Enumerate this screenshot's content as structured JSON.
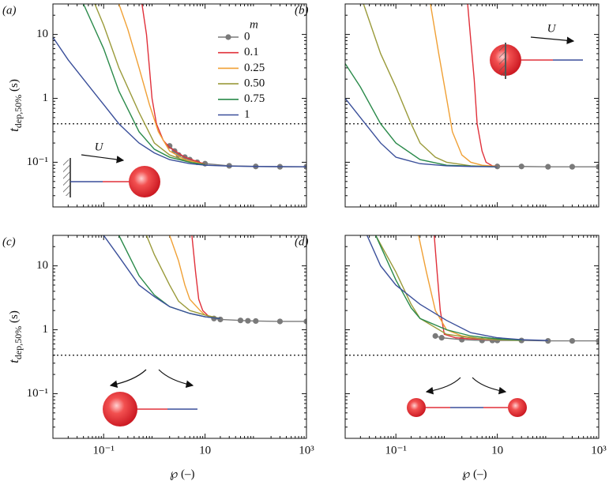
{
  "chart_data": [
    {
      "type": "line",
      "panel_label": "(a)",
      "xscale": "log",
      "yscale": "log",
      "xlim": [
        0.01,
        1000
      ],
      "ylim": [
        0.02,
        30
      ],
      "xticks": [
        0.1,
        10,
        1000
      ],
      "yticks": [
        {
          "value": 0.1,
          "label": "10⁻¹"
        },
        1,
        10
      ],
      "ylabel": {
        "main": "t",
        "sub": "dep,50%",
        "unit": " (s)"
      },
      "hline": 0.4,
      "annotation": "U",
      "legend_title": "m",
      "legend_loc": "upper right",
      "series": [
        {
          "name": "0",
          "color": "#7a7a7a",
          "markers": true,
          "x": [
            2,
            2.5,
            3,
            4,
            5,
            7,
            10,
            30,
            100,
            300,
            1000
          ],
          "values": [
            0.18,
            0.15,
            0.13,
            0.12,
            0.11,
            0.1,
            0.095,
            0.088,
            0.086,
            0.085,
            0.085
          ]
        },
        {
          "name": "0.1",
          "color": "#e0303a",
          "x": [
            0.57,
            0.7,
            0.8,
            0.9,
            1.1,
            1.5,
            2,
            4,
            10
          ],
          "values": [
            30,
            10,
            3,
            1,
            0.4,
            0.22,
            0.17,
            0.12,
            0.093
          ]
        },
        {
          "name": "0.25",
          "color": "#f0a035",
          "x": [
            0.2,
            0.3,
            0.5,
            0.8,
            1.2,
            2,
            4,
            10
          ],
          "values": [
            30,
            12,
            3,
            0.8,
            0.3,
            0.15,
            0.11,
            0.092
          ]
        },
        {
          "name": "0.50",
          "color": "#9a9a3a",
          "x": [
            0.067,
            0.1,
            0.2,
            0.5,
            1,
            2,
            5,
            10
          ],
          "values": [
            30,
            14,
            3,
            0.6,
            0.2,
            0.13,
            0.1,
            0.092
          ]
        },
        {
          "name": "0.75",
          "color": "#2a8a4a",
          "x": [
            0.04,
            0.1,
            0.2,
            0.5,
            1,
            2,
            5,
            10
          ],
          "values": [
            30,
            6,
            1.3,
            0.3,
            0.16,
            0.12,
            0.1,
            0.092
          ]
        },
        {
          "name": "1",
          "color": "#3a4f9a",
          "x": [
            0.01,
            0.02,
            0.05,
            0.1,
            0.2,
            0.5,
            1,
            2,
            5,
            10,
            30,
            100,
            1000
          ],
          "values": [
            9,
            4,
            1.6,
            0.8,
            0.4,
            0.2,
            0.14,
            0.11,
            0.095,
            0.09,
            0.087,
            0.086,
            0.085
          ]
        }
      ]
    },
    {
      "type": "line",
      "panel_label": "(b)",
      "xscale": "log",
      "yscale": "log",
      "xlim": [
        0.01,
        1000
      ],
      "ylim": [
        0.02,
        30
      ],
      "xticks": [
        0.1,
        10,
        1000
      ],
      "yticks": [
        0.1,
        1,
        10
      ],
      "hline": 0.4,
      "annotation": "U",
      "series": [
        {
          "color": "#7a7a7a",
          "markers": true,
          "x": [
            10,
            30,
            100,
            300,
            1000
          ],
          "values": [
            0.086,
            0.086,
            0.085,
            0.085,
            0.085
          ]
        },
        {
          "color": "#e0303a",
          "x": [
            2.6,
            3,
            3.5,
            4,
            5,
            6,
            8,
            10
          ],
          "values": [
            30,
            8,
            2,
            0.4,
            0.15,
            0.1,
            0.088,
            0.086
          ]
        },
        {
          "color": "#f0a035",
          "x": [
            0.48,
            0.7,
            1,
            1.3,
            2,
            3,
            5,
            10
          ],
          "values": [
            30,
            5,
            1,
            0.3,
            0.13,
            0.1,
            0.09,
            0.086
          ]
        },
        {
          "color": "#9a9a3a",
          "x": [
            0.023,
            0.05,
            0.1,
            0.2,
            0.3,
            0.6,
            1,
            3,
            10
          ],
          "values": [
            30,
            5,
            1.5,
            0.4,
            0.2,
            0.12,
            0.1,
            0.088,
            0.085
          ]
        },
        {
          "color": "#2a8a4a",
          "x": [
            0.01,
            0.02,
            0.05,
            0.1,
            0.3,
            1,
            3,
            10
          ],
          "values": [
            3.5,
            1.5,
            0.4,
            0.2,
            0.11,
            0.09,
            0.087,
            0.085
          ]
        },
        {
          "color": "#3a4f9a",
          "x": [
            0.01,
            0.02,
            0.05,
            0.1,
            0.3,
            1,
            3,
            10
          ],
          "values": [
            1.0,
            0.5,
            0.2,
            0.12,
            0.095,
            0.088,
            0.086,
            0.085
          ]
        }
      ]
    },
    {
      "type": "line",
      "panel_label": "(c)",
      "xscale": "log",
      "yscale": "log",
      "xlim": [
        0.01,
        1000
      ],
      "ylim": [
        0.02,
        30
      ],
      "xticks": [
        {
          "value": 0.1,
          "label": "10⁻¹"
        },
        10,
        {
          "value": 1000,
          "label": "10³"
        }
      ],
      "yticks": [
        {
          "value": 0.1,
          "label": "10⁻¹"
        },
        1,
        10
      ],
      "xlabel": "℘ (–)",
      "ylabel": {
        "main": "t",
        "sub": "dep,50%",
        "unit": " (s)"
      },
      "hline": 0.4,
      "series": [
        {
          "color": "#7a7a7a",
          "markers": true,
          "x": [
            15,
            20,
            50,
            70,
            100,
            300,
            1000
          ],
          "values": [
            1.5,
            1.45,
            1.4,
            1.38,
            1.37,
            1.35,
            1.35
          ]
        },
        {
          "color": "#e0303a",
          "x": [
            5.5,
            6.5,
            7.5,
            9,
            12,
            20
          ],
          "values": [
            30,
            8,
            3,
            2,
            1.6,
            1.5
          ]
        },
        {
          "color": "#f0a035",
          "x": [
            2,
            3,
            4,
            5,
            8,
            10,
            20
          ],
          "values": [
            30,
            12,
            5,
            3,
            2,
            1.7,
            1.5
          ]
        },
        {
          "color": "#9a9a3a",
          "x": [
            0.7,
            1,
            2,
            3,
            5,
            10,
            20
          ],
          "values": [
            30,
            15,
            5,
            2.8,
            2,
            1.7,
            1.5
          ]
        },
        {
          "color": "#2a8a4a",
          "x": [
            0.2,
            0.5,
            1,
            2,
            5,
            10,
            20
          ],
          "values": [
            30,
            7,
            3.5,
            2.3,
            1.8,
            1.6,
            1.5
          ]
        },
        {
          "color": "#3a4f9a",
          "x": [
            0.1,
            0.2,
            0.5,
            1,
            2,
            5,
            10,
            20
          ],
          "values": [
            30,
            14,
            5,
            3.3,
            2.3,
            1.8,
            1.6,
            1.5
          ]
        }
      ]
    },
    {
      "type": "line",
      "panel_label": "(d)",
      "xscale": "log",
      "yscale": "log",
      "xlim": [
        0.01,
        1000
      ],
      "ylim": [
        0.02,
        30
      ],
      "xticks": [
        {
          "value": 0.1,
          "label": "10⁻¹"
        },
        10,
        {
          "value": 1000,
          "label": "10³"
        }
      ],
      "yticks": [
        0.1,
        1,
        10
      ],
      "xlabel": "℘ (–)",
      "hline": 0.4,
      "series": [
        {
          "color": "#7a7a7a",
          "markers": true,
          "x": [
            0.6,
            0.8,
            2,
            5,
            8,
            10,
            30,
            100,
            300,
            1000
          ],
          "values": [
            0.8,
            0.75,
            0.7,
            0.68,
            0.68,
            0.68,
            0.68,
            0.67,
            0.67,
            0.67
          ]
        },
        {
          "color": "#e0303a",
          "x": [
            0.57,
            0.65,
            0.75,
            0.9,
            1.5,
            3,
            10
          ],
          "values": [
            30,
            8,
            2,
            0.85,
            0.75,
            0.72,
            0.7
          ]
        },
        {
          "color": "#f0a035",
          "x": [
            0.28,
            0.4,
            0.6,
            1,
            2,
            5,
            10
          ],
          "values": [
            30,
            8,
            2,
            1,
            0.8,
            0.72,
            0.7
          ]
        },
        {
          "color": "#9a9a3a",
          "x": [
            0.04,
            0.1,
            0.2,
            0.3,
            1,
            3,
            10,
            30
          ],
          "values": [
            30,
            8,
            2.5,
            1.5,
            0.85,
            0.75,
            0.7,
            0.68
          ]
        },
        {
          "color": "#2a8a4a",
          "x": [
            0.04,
            0.1,
            0.2,
            0.3,
            1,
            3,
            10,
            30
          ],
          "values": [
            30,
            6,
            2.2,
            1.5,
            1,
            0.8,
            0.72,
            0.69
          ]
        },
        {
          "color": "#3a4f9a",
          "x": [
            0.027,
            0.05,
            0.1,
            0.3,
            1,
            3,
            10,
            30,
            100
          ],
          "values": [
            30,
            10,
            5,
            2.5,
            1.4,
            0.9,
            0.75,
            0.7,
            0.68
          ]
        }
      ]
    }
  ]
}
